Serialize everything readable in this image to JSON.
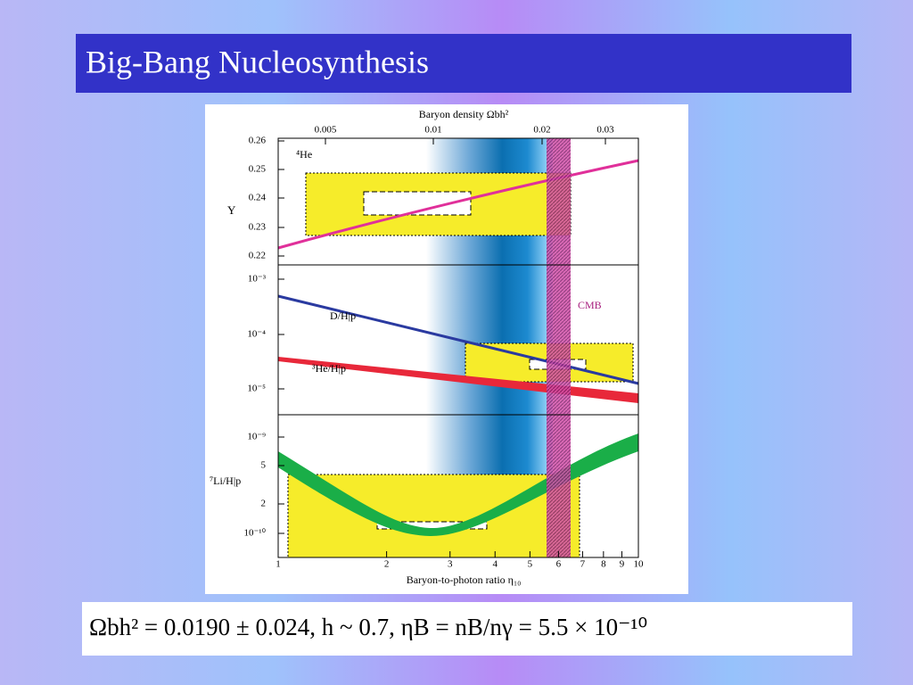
{
  "slide": {
    "title": "Big-Bang Nucleosynthesis",
    "figure": {
      "top_axis_label": "Baryon density Ωbh²",
      "top_ticks": [
        "0.005",
        "0.01",
        "0.02",
        "0.03"
      ],
      "bottom_axis_label": "Baryon-to-photon ratio η₁₀",
      "bottom_ticks": [
        "1",
        "2",
        "3",
        "4",
        "5",
        "6",
        "7",
        "8",
        "9",
        "10"
      ],
      "he_panel": {
        "y_label": "Y",
        "curve_label": "⁴He",
        "ticks": [
          "0.26",
          "0.25",
          "0.24",
          "0.23",
          "0.22"
        ]
      },
      "d_panel": {
        "ticks": [
          "10⁻³",
          "10⁻⁴",
          "10⁻⁵"
        ],
        "d_label": "D/H|p",
        "he3_label": "³He/H|p",
        "cmb_label": "CMB"
      },
      "li_panel": {
        "y_label": "⁷Li/H|p",
        "ticks": [
          "10⁻⁹",
          "5",
          "2",
          "10⁻¹⁰"
        ]
      }
    },
    "equation": "Ωbh² = 0.0190 ± 0.024,  h ~ 0.7,    ηB = nB/nγ = 5.5 × 10⁻¹⁰"
  }
}
